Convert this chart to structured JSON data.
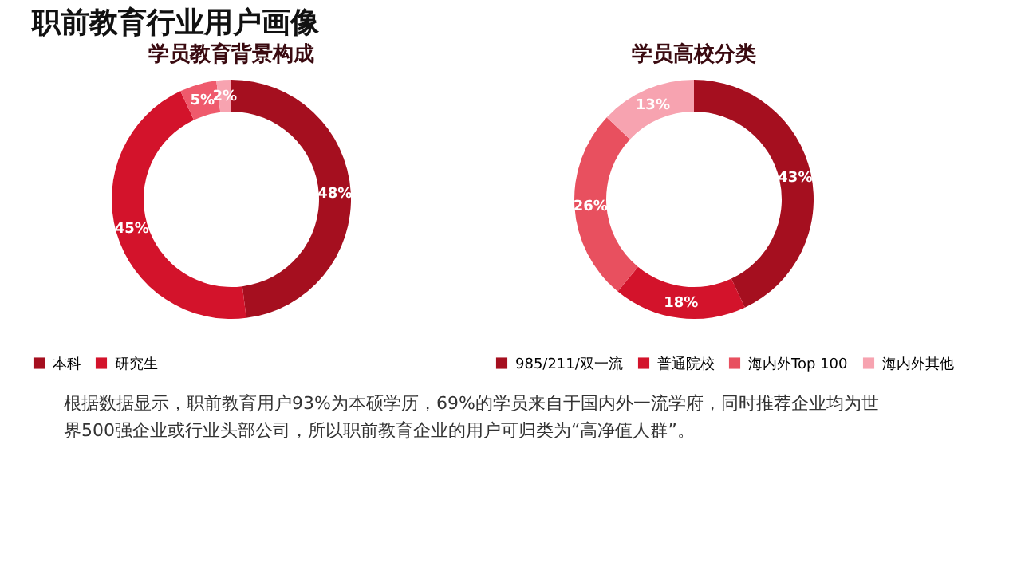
{
  "chart_data": [
    {
      "type": "donut",
      "title": "学员教育背景构成",
      "categories": [
        "本科",
        "研究生",
        null,
        null
      ],
      "values": [
        48,
        45,
        5,
        2
      ],
      "colors": [
        "#a50f1f",
        "#d3132b",
        "#ef5a6c",
        "#f7a3b0"
      ],
      "value_labels": [
        "48%",
        "45%",
        "5%",
        "2%"
      ],
      "legend": "bottom",
      "annotations": [
        "职前教育行业用户画像"
      ]
    },
    {
      "type": "donut",
      "title": "学员高校分类",
      "categories": [
        "985/211/双一流",
        "普通院校",
        "海内外Top 100",
        "海内外其他"
      ],
      "values": [
        43,
        18,
        26,
        13
      ],
      "colors": [
        "#a50f1f",
        "#d3132b",
        "#e8505f",
        "#f7a3b0"
      ],
      "value_labels": [
        "43%",
        "18%",
        "26%",
        "13%"
      ],
      "legend": "bottom",
      "annotations": [
        "根据数据显示，职前教育用户93%为本硕学历，69%的学员来自于国内外一流学府，同时推荐企业均为世界500强企业或行业头部公司，所以职前教育企业的用户可归类为“高净值人群”。"
      ]
    }
  ]
}
